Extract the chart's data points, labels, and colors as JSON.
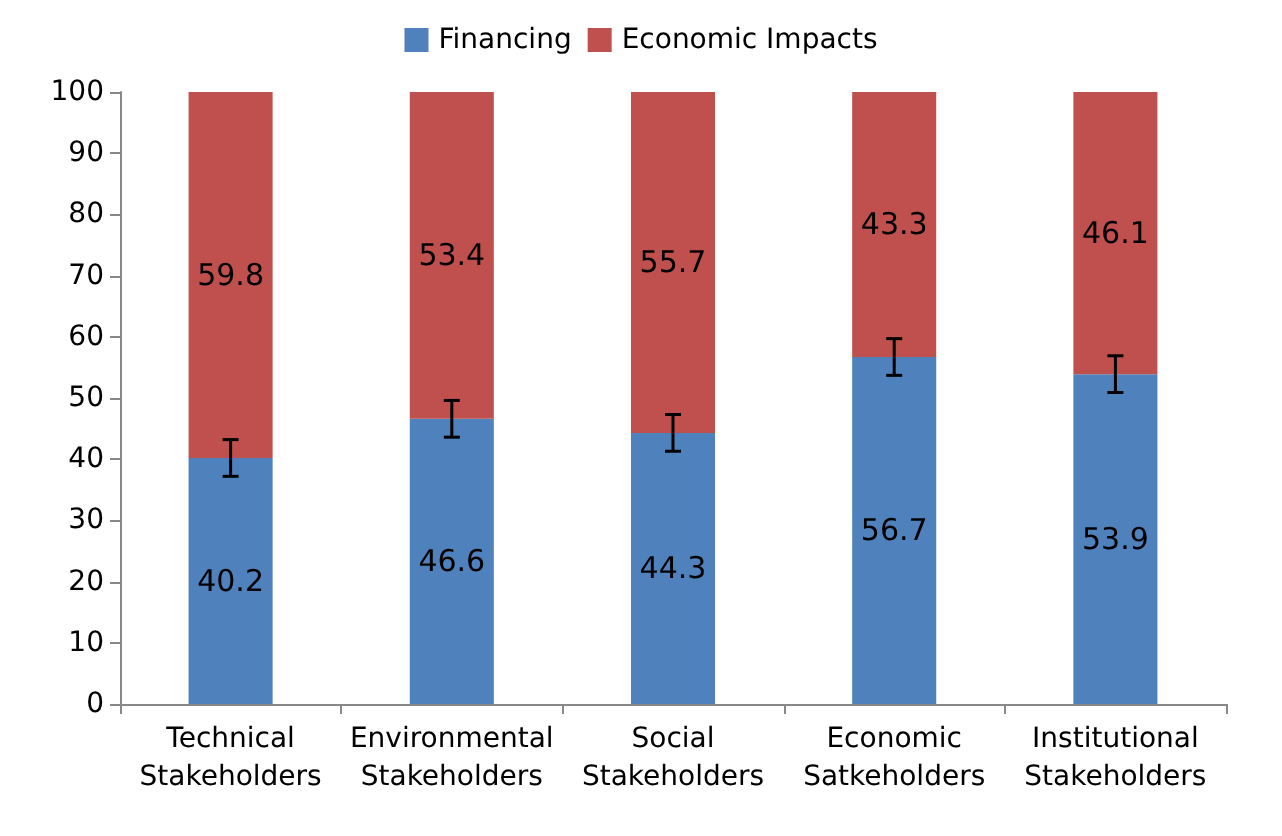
{
  "chart_data": {
    "type": "bar",
    "stacked": true,
    "categories": [
      "Technical Stakeholders",
      "Environmental Stakeholders",
      "Social Stakeholders",
      "Economic Satkeholders",
      "Institutional Stakeholders"
    ],
    "series": [
      {
        "name": "Financing",
        "color": "#4f81bd",
        "values": [
          40.2,
          46.6,
          44.3,
          56.7,
          53.9
        ],
        "errors": [
          3,
          3,
          3,
          3,
          3
        ]
      },
      {
        "name": "Economic Impacts",
        "color": "#c0504d",
        "values": [
          59.8,
          53.4,
          55.7,
          43.3,
          46.1
        ]
      }
    ],
    "ylim": [
      0,
      100
    ],
    "yticks": [
      0,
      10,
      20,
      30,
      40,
      50,
      60,
      70,
      80,
      90,
      100
    ],
    "grid": false,
    "legend": "top",
    "data_labels": true
  }
}
